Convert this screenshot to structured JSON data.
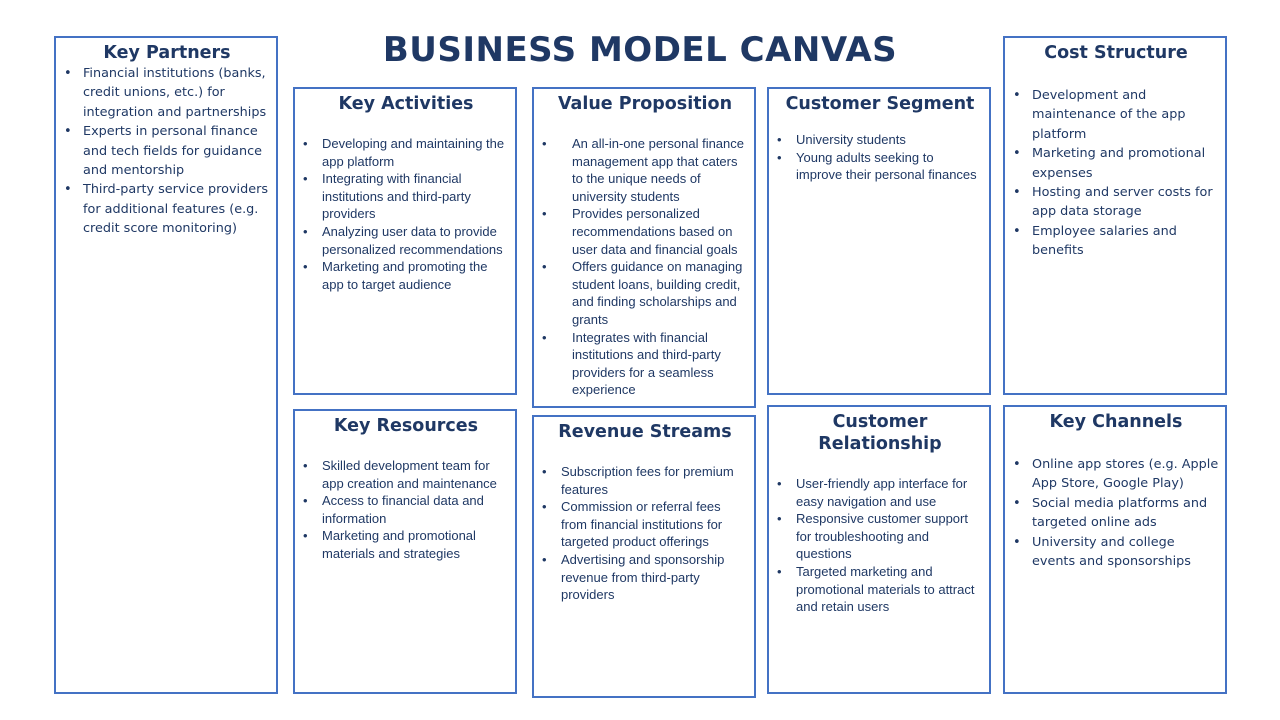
{
  "title": "BUSINESS MODEL CANVAS",
  "colors": {
    "border": "#4472c4",
    "text": "#1f3864"
  },
  "blocks": {
    "key_partners": {
      "heading": "Key Partners",
      "items": [
        "Financial institutions (banks, credit unions, etc.) for integration and partnerships",
        "Experts in personal finance and tech fields for guidance and mentorship",
        "Third-party service providers for additional features (e.g. credit score monitoring)"
      ]
    },
    "key_activities": {
      "heading": "Key Activities",
      "items": [
        "Developing and maintaining the app platform",
        "Integrating with financial institutions and third-party providers",
        "Analyzing user data to provide personalized recommendations",
        "Marketing and promoting the app to target audience"
      ]
    },
    "value_proposition": {
      "heading": "Value Proposition",
      "items": [
        "An all-in-one personal finance management app that caters to the unique needs of university students",
        "Provides personalized recommendations based on user data and financial goals",
        "Offers guidance on managing student loans, building credit, and finding scholarships and grants",
        "Integrates with financial institutions and third-party providers for a seamless experience"
      ]
    },
    "customer_segment": {
      "heading": "Customer Segment",
      "items": [
        "University students",
        "Young adults seeking to improve their personal finances"
      ]
    },
    "cost_structure": {
      "heading": "Cost Structure",
      "items": [
        "Development and maintenance of the app platform",
        "Marketing and promotional expenses",
        "Hosting and server costs for app data storage",
        "Employee salaries and benefits"
      ]
    },
    "key_resources": {
      "heading": "Key Resources",
      "items": [
        "Skilled development team for app creation and maintenance",
        "Access to financial data and information",
        "Marketing and promotional materials and strategies"
      ]
    },
    "revenue_streams": {
      "heading": "Revenue Streams",
      "items": [
        "Subscription fees for premium features",
        "Commission or referral fees from financial institutions for targeted product offerings",
        "Advertising and sponsorship revenue from third-party providers"
      ]
    },
    "customer_relationship": {
      "heading": "Customer Relationship",
      "items": [
        "User-friendly app interface for easy navigation and use",
        "Responsive customer support for troubleshooting and questions",
        "Targeted marketing and promotional materials to attract and retain users"
      ]
    },
    "key_channels": {
      "heading": "Key Channels",
      "items": [
        "Online app stores (e.g. Apple App Store, Google Play)",
        "Social media platforms and targeted online ads",
        "University and college events and sponsorships"
      ]
    }
  }
}
